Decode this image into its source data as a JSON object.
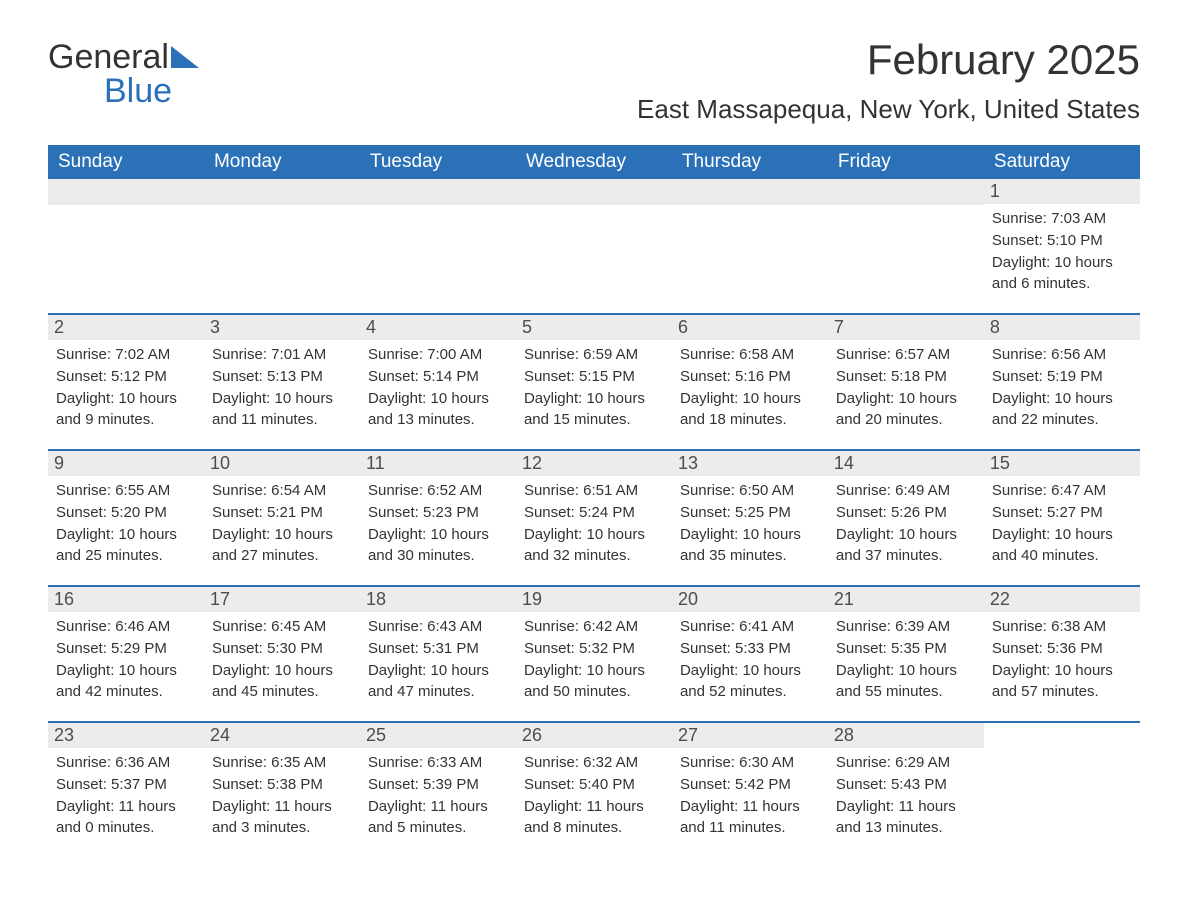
{
  "logo": {
    "text1": "General",
    "text2": "Blue",
    "accent_color": "#2a71b8"
  },
  "title": "February 2025",
  "location": "East Massapequa, New York, United States",
  "dow": [
    "Sunday",
    "Monday",
    "Tuesday",
    "Wednesday",
    "Thursday",
    "Friday",
    "Saturday"
  ],
  "colors": {
    "header_bg": "#2a71b8",
    "header_text": "#ffffff",
    "daynum_bg": "#ececec",
    "text": "#333333",
    "background": "#ffffff"
  },
  "weeks": [
    [
      null,
      null,
      null,
      null,
      null,
      null,
      {
        "n": "1",
        "sunrise": "7:03 AM",
        "sunset": "5:10 PM",
        "daylight": "10 hours and 6 minutes."
      }
    ],
    [
      {
        "n": "2",
        "sunrise": "7:02 AM",
        "sunset": "5:12 PM",
        "daylight": "10 hours and 9 minutes."
      },
      {
        "n": "3",
        "sunrise": "7:01 AM",
        "sunset": "5:13 PM",
        "daylight": "10 hours and 11 minutes."
      },
      {
        "n": "4",
        "sunrise": "7:00 AM",
        "sunset": "5:14 PM",
        "daylight": "10 hours and 13 minutes."
      },
      {
        "n": "5",
        "sunrise": "6:59 AM",
        "sunset": "5:15 PM",
        "daylight": "10 hours and 15 minutes."
      },
      {
        "n": "6",
        "sunrise": "6:58 AM",
        "sunset": "5:16 PM",
        "daylight": "10 hours and 18 minutes."
      },
      {
        "n": "7",
        "sunrise": "6:57 AM",
        "sunset": "5:18 PM",
        "daylight": "10 hours and 20 minutes."
      },
      {
        "n": "8",
        "sunrise": "6:56 AM",
        "sunset": "5:19 PM",
        "daylight": "10 hours and 22 minutes."
      }
    ],
    [
      {
        "n": "9",
        "sunrise": "6:55 AM",
        "sunset": "5:20 PM",
        "daylight": "10 hours and 25 minutes."
      },
      {
        "n": "10",
        "sunrise": "6:54 AM",
        "sunset": "5:21 PM",
        "daylight": "10 hours and 27 minutes."
      },
      {
        "n": "11",
        "sunrise": "6:52 AM",
        "sunset": "5:23 PM",
        "daylight": "10 hours and 30 minutes."
      },
      {
        "n": "12",
        "sunrise": "6:51 AM",
        "sunset": "5:24 PM",
        "daylight": "10 hours and 32 minutes."
      },
      {
        "n": "13",
        "sunrise": "6:50 AM",
        "sunset": "5:25 PM",
        "daylight": "10 hours and 35 minutes."
      },
      {
        "n": "14",
        "sunrise": "6:49 AM",
        "sunset": "5:26 PM",
        "daylight": "10 hours and 37 minutes."
      },
      {
        "n": "15",
        "sunrise": "6:47 AM",
        "sunset": "5:27 PM",
        "daylight": "10 hours and 40 minutes."
      }
    ],
    [
      {
        "n": "16",
        "sunrise": "6:46 AM",
        "sunset": "5:29 PM",
        "daylight": "10 hours and 42 minutes."
      },
      {
        "n": "17",
        "sunrise": "6:45 AM",
        "sunset": "5:30 PM",
        "daylight": "10 hours and 45 minutes."
      },
      {
        "n": "18",
        "sunrise": "6:43 AM",
        "sunset": "5:31 PM",
        "daylight": "10 hours and 47 minutes."
      },
      {
        "n": "19",
        "sunrise": "6:42 AM",
        "sunset": "5:32 PM",
        "daylight": "10 hours and 50 minutes."
      },
      {
        "n": "20",
        "sunrise": "6:41 AM",
        "sunset": "5:33 PM",
        "daylight": "10 hours and 52 minutes."
      },
      {
        "n": "21",
        "sunrise": "6:39 AM",
        "sunset": "5:35 PM",
        "daylight": "10 hours and 55 minutes."
      },
      {
        "n": "22",
        "sunrise": "6:38 AM",
        "sunset": "5:36 PM",
        "daylight": "10 hours and 57 minutes."
      }
    ],
    [
      {
        "n": "23",
        "sunrise": "6:36 AM",
        "sunset": "5:37 PM",
        "daylight": "11 hours and 0 minutes."
      },
      {
        "n": "24",
        "sunrise": "6:35 AM",
        "sunset": "5:38 PM",
        "daylight": "11 hours and 3 minutes."
      },
      {
        "n": "25",
        "sunrise": "6:33 AM",
        "sunset": "5:39 PM",
        "daylight": "11 hours and 5 minutes."
      },
      {
        "n": "26",
        "sunrise": "6:32 AM",
        "sunset": "5:40 PM",
        "daylight": "11 hours and 8 minutes."
      },
      {
        "n": "27",
        "sunrise": "6:30 AM",
        "sunset": "5:42 PM",
        "daylight": "11 hours and 11 minutes."
      },
      {
        "n": "28",
        "sunrise": "6:29 AM",
        "sunset": "5:43 PM",
        "daylight": "11 hours and 13 minutes."
      },
      null
    ]
  ],
  "labels": {
    "sunrise": "Sunrise:",
    "sunset": "Sunset:",
    "daylight": "Daylight:"
  }
}
